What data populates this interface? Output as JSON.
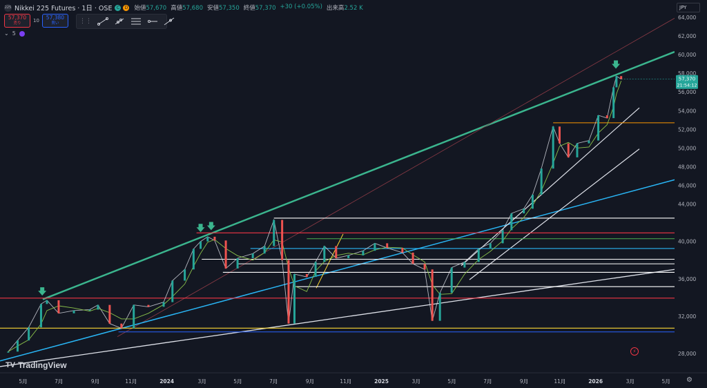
{
  "header": {
    "symbol_logo": "225",
    "title": "Nikkei 225 Futures · 1日 · OSE",
    "dot_c": "C",
    "dot_d": "D",
    "ohlc": [
      {
        "key": "始値",
        "value": "57,670"
      },
      {
        "key": "高値",
        "value": "57,680"
      },
      {
        "key": "安値",
        "value": "57,350"
      },
      {
        "key": "終値",
        "value": "57,370"
      },
      {
        "key": "",
        "value": "+30 (+0.05%)"
      },
      {
        "key": "出来高",
        "value": "2.52 K"
      }
    ]
  },
  "trade": {
    "sell_price": "57,370",
    "sell_label": "売り",
    "qty": "10",
    "buy_price": "57,380",
    "buy_label": "買い"
  },
  "indicator": {
    "label": "5"
  },
  "currency": "JPY",
  "brand": {
    "name": "TradingView",
    "logo": "TV"
  },
  "colors": {
    "background": "#131722",
    "up": "#26a69a",
    "down": "#ef5350",
    "channel": "#3bb58e",
    "blue_trend": "#29b6f6",
    "white_line": "#e0e3eb",
    "red_line": "#f23645",
    "yellow_line": "#fdd835",
    "ma": "#8bc34a"
  },
  "chart_data": {
    "type": "candlestick",
    "symbol": "Nikkei 225 Futures",
    "interval": "1日",
    "exchange": "OSE",
    "x_ticks": [
      "5月",
      "7月",
      "9月",
      "11月",
      "2024",
      "3月",
      "5月",
      "7月",
      "9月",
      "11月",
      "2025",
      "3月",
      "5月",
      "7月",
      "9月",
      "11月",
      "2026",
      "3月",
      "5月"
    ],
    "y_ticks": [
      28000,
      30000,
      32000,
      34000,
      36000,
      38000,
      40000,
      42000,
      44000,
      46000,
      48000,
      50000,
      52000,
      54000,
      56000,
      58000,
      60000,
      62000,
      64000
    ],
    "y_tick_labels": [
      "28,000",
      "",
      "32,000",
      "",
      "36,000",
      "",
      "40,000",
      "",
      "44,000",
      "46,000",
      "48,000",
      "50,000",
      "52,000",
      "54,000",
      "56,000",
      "58,000",
      "60,000",
      "62,000",
      "64,000"
    ],
    "ylim": [
      26000,
      65000
    ],
    "price_series": [
      {
        "date": "2023-04-15",
        "close": 28200
      },
      {
        "date": "2023-05-01",
        "close": 29400
      },
      {
        "date": "2023-05-20",
        "close": 30800
      },
      {
        "date": "2023-06-10",
        "close": 33300
      },
      {
        "date": "2023-06-20",
        "close": 33700
      },
      {
        "date": "2023-07-10",
        "close": 32300
      },
      {
        "date": "2023-08-05",
        "close": 32600
      },
      {
        "date": "2023-09-01",
        "close": 32700
      },
      {
        "date": "2023-09-15",
        "close": 33200
      },
      {
        "date": "2023-10-05",
        "close": 31200
      },
      {
        "date": "2023-10-25",
        "close": 30700
      },
      {
        "date": "2023-11-15",
        "close": 33200
      },
      {
        "date": "2023-12-10",
        "close": 33000
      },
      {
        "date": "2024-01-05",
        "close": 33500
      },
      {
        "date": "2024-01-20",
        "close": 35800
      },
      {
        "date": "2024-02-10",
        "close": 37000
      },
      {
        "date": "2024-02-25",
        "close": 39200
      },
      {
        "date": "2024-03-08",
        "close": 40000
      },
      {
        "date": "2024-03-20",
        "close": 40500
      },
      {
        "date": "2024-04-01",
        "close": 40100
      },
      {
        "date": "2024-04-20",
        "close": 37100
      },
      {
        "date": "2024-05-10",
        "close": 38200
      },
      {
        "date": "2024-06-05",
        "close": 38700
      },
      {
        "date": "2024-06-25",
        "close": 39500
      },
      {
        "date": "2024-07-11",
        "close": 42300
      },
      {
        "date": "2024-07-25",
        "close": 38000
      },
      {
        "date": "2024-08-05",
        "close": 31200
      },
      {
        "date": "2024-08-15",
        "close": 36500
      },
      {
        "date": "2024-09-05",
        "close": 36200
      },
      {
        "date": "2024-09-20",
        "close": 37800
      },
      {
        "date": "2024-10-05",
        "close": 39500
      },
      {
        "date": "2024-10-25",
        "close": 38200
      },
      {
        "date": "2024-11-15",
        "close": 38500
      },
      {
        "date": "2024-12-10",
        "close": 39000
      },
      {
        "date": "2024-12-30",
        "close": 39800
      },
      {
        "date": "2025-01-20",
        "close": 39300
      },
      {
        "date": "2025-02-15",
        "close": 38800
      },
      {
        "date": "2025-03-05",
        "close": 37600
      },
      {
        "date": "2025-03-25",
        "close": 37000
      },
      {
        "date": "2025-04-07",
        "close": 31500
      },
      {
        "date": "2025-04-20",
        "close": 34500
      },
      {
        "date": "2025-05-10",
        "close": 37200
      },
      {
        "date": "2025-06-01",
        "close": 37800
      },
      {
        "date": "2025-06-25",
        "close": 39200
      },
      {
        "date": "2025-07-15",
        "close": 39800
      },
      {
        "date": "2025-08-05",
        "close": 41200
      },
      {
        "date": "2025-08-20",
        "close": 43000
      },
      {
        "date": "2025-09-10",
        "close": 43500
      },
      {
        "date": "2025-09-25",
        "close": 45000
      },
      {
        "date": "2025-10-10",
        "close": 47800
      },
      {
        "date": "2025-10-30",
        "close": 52300
      },
      {
        "date": "2025-11-10",
        "close": 50500
      },
      {
        "date": "2025-11-25",
        "close": 49000
      },
      {
        "date": "2025-12-10",
        "close": 50500
      },
      {
        "date": "2025-12-30",
        "close": 50800
      },
      {
        "date": "2026-01-15",
        "close": 53500
      },
      {
        "date": "2026-01-30",
        "close": 53200
      },
      {
        "date": "2026-02-10",
        "close": 56500
      },
      {
        "date": "2026-02-15",
        "close": 57700
      },
      {
        "date": "2026-02-23",
        "close": 57370
      }
    ],
    "horizontal_levels": [
      {
        "value": 52700,
        "label": "52,700",
        "color": "#ff9800",
        "from": "2025-10-30"
      },
      {
        "value": 42490,
        "label": "42,490",
        "color": "#ffffff",
        "from": "2024-07-11"
      },
      {
        "value": 40910,
        "label": "40,910",
        "color": "#f23645",
        "from": "2024-03-01"
      },
      {
        "value": 40290,
        "label": "40,290",
        "color": "#4caf50",
        "from": "2024-09-05"
      },
      {
        "value": 39240,
        "label": "39,240",
        "color": "#29b6f6",
        "from": "2024-06-01"
      },
      {
        "value": 38090,
        "label": "38,090",
        "color": "#ffffff",
        "from": "2024-03-10"
      },
      {
        "value": 37600,
        "label": "37,600",
        "color": "#ffffff",
        "from": "2024-05-10"
      },
      {
        "value": 36690,
        "label": "36,690",
        "color": "#ffffff",
        "from": "2024-04-15"
      },
      {
        "value": 35160,
        "label": "35,160",
        "color": "#ffffff",
        "from": "2024-08-15"
      },
      {
        "value": 33930,
        "label": "33,930",
        "color": "#f23645",
        "from": "2023-04-01"
      },
      {
        "value": 30710,
        "label": "30,710",
        "color": "#fdd835",
        "from": "2023-04-01"
      },
      {
        "value": 30310,
        "label": "30,310",
        "color": "#2962ff",
        "from": "2023-10-20"
      }
    ],
    "current_price": {
      "value": 57370,
      "label": "57,370",
      "countdown": "21:54:12"
    }
  }
}
